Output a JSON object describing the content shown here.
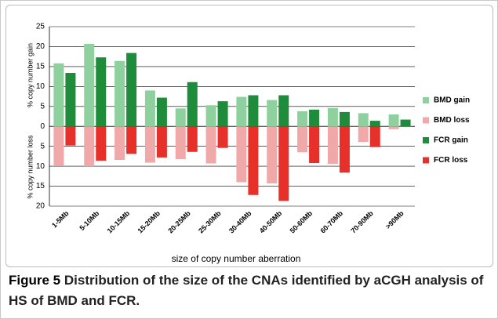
{
  "chart_data": {
    "type": "bar",
    "categories": [
      "1-5Mb",
      "5-10Mb",
      "10-15Mb",
      "15-20Mb",
      "20-25Mb",
      "25-30Mb",
      "30-40Mb",
      "40-50Mb",
      "50-60Mb",
      "60-70Mb",
      "70-90Mb",
      ">90Mb"
    ],
    "series": [
      {
        "name": "BMD gain",
        "color": "#8fd19e",
        "values": [
          15.8,
          20.7,
          16.4,
          9.0,
          4.5,
          5.3,
          7.4,
          6.6,
          3.8,
          4.6,
          3.3,
          3.0
        ]
      },
      {
        "name": "BMD loss",
        "color": "#f0a8a8",
        "values": [
          -9.8,
          -10.0,
          -8.4,
          -9.1,
          -8.2,
          -9.3,
          -14.0,
          -14.3,
          -6.5,
          -9.4,
          -3.9,
          -0.7
        ]
      },
      {
        "name": "FCR gain",
        "color": "#1e8c3a",
        "values": [
          13.4,
          17.3,
          18.4,
          7.2,
          11.1,
          6.3,
          7.8,
          7.8,
          4.2,
          3.6,
          1.4,
          1.7
        ]
      },
      {
        "name": "FCR loss",
        "color": "#e8302a",
        "values": [
          -4.8,
          -8.6,
          -6.9,
          -7.8,
          -6.4,
          -5.4,
          -17.2,
          -18.7,
          -9.2,
          -11.6,
          -5.2,
          0
        ]
      }
    ],
    "ylim": [
      -20,
      25
    ],
    "yticks": [
      {
        "value": -20,
        "label": "20"
      },
      {
        "value": -15,
        "label": "15"
      },
      {
        "value": -10,
        "label": "10"
      },
      {
        "value": -5,
        "label": "5"
      },
      0,
      5,
      10,
      15,
      20,
      25
    ],
    "ylabel_gain": "% copy number gain",
    "ylabel_loss": "% copy number loss",
    "xlabel": "size of copy number aberration",
    "grid": true,
    "legend": "right"
  },
  "caption": {
    "label": "Figure 5",
    "text": "Distribution of the size of the CNAs identified by aCGH analysis of HS of BMD and FCR."
  }
}
